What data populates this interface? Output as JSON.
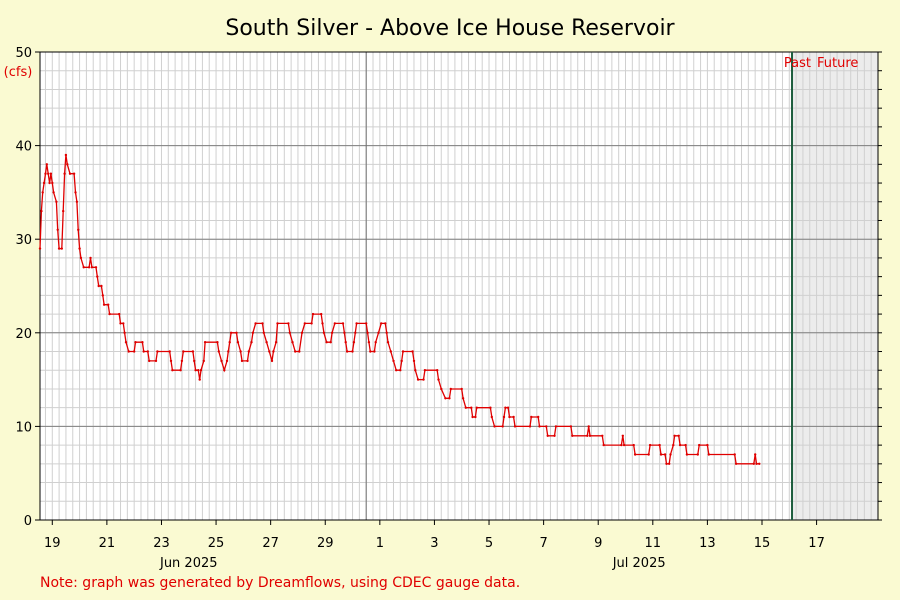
{
  "note": "Note: graph was generated by Dreamflows, using CDEC gauge data.",
  "colors": {
    "background": "#fafad2",
    "flow_line": "#e00000",
    "now_line": "#1e5e3e",
    "future_shade": "#ececec"
  },
  "chart_data": {
    "type": "line",
    "title": "South Silver - Above Ice House Reservoir",
    "ylabel": "(cfs)",
    "xlabel": "",
    "ylim": [
      0,
      50
    ],
    "y_ticks": [
      0,
      10,
      20,
      30,
      40,
      50
    ],
    "grid": true,
    "x_units": "day index (0 = Jun 18, 2025)",
    "xlim": [
      18.55,
      49.25
    ],
    "x_ticks": [
      {
        "x": 19,
        "label": "19"
      },
      {
        "x": 21,
        "label": "21"
      },
      {
        "x": 23,
        "label": "23"
      },
      {
        "x": 25,
        "label": "25"
      },
      {
        "x": 27,
        "label": "27"
      },
      {
        "x": 29,
        "label": "29"
      },
      {
        "x": 31,
        "label": "1"
      },
      {
        "x": 33,
        "label": "3"
      },
      {
        "x": 35,
        "label": "5"
      },
      {
        "x": 37,
        "label": "7"
      },
      {
        "x": 39,
        "label": "9"
      },
      {
        "x": 41,
        "label": "11"
      },
      {
        "x": 43,
        "label": "13"
      },
      {
        "x": 45,
        "label": "15"
      },
      {
        "x": 47,
        "label": "17"
      }
    ],
    "month_labels": [
      {
        "x": 24,
        "label": "Jun 2025"
      },
      {
        "x": 40.5,
        "label": "Jul 2025"
      }
    ],
    "month_divider_x": 30.5,
    "now_x": 46.1,
    "past_label": "Past",
    "future_label": "Future",
    "series": [
      {
        "values": [
          [
            18.55,
            29
          ],
          [
            18.6,
            33
          ],
          [
            18.65,
            35
          ],
          [
            18.7,
            36
          ],
          [
            18.75,
            37
          ],
          [
            18.8,
            38
          ],
          [
            18.85,
            37
          ],
          [
            18.9,
            36
          ],
          [
            18.95,
            37
          ],
          [
            19.0,
            36
          ],
          [
            19.05,
            35
          ],
          [
            19.15,
            34
          ],
          [
            19.2,
            31
          ],
          [
            19.25,
            29
          ],
          [
            19.35,
            29
          ],
          [
            19.4,
            33
          ],
          [
            19.45,
            37
          ],
          [
            19.5,
            39
          ],
          [
            19.55,
            38
          ],
          [
            19.65,
            37
          ],
          [
            19.8,
            37
          ],
          [
            19.85,
            35
          ],
          [
            19.9,
            34
          ],
          [
            19.95,
            31
          ],
          [
            20.0,
            29
          ],
          [
            20.05,
            28
          ],
          [
            20.15,
            27
          ],
          [
            20.35,
            27
          ],
          [
            20.4,
            28
          ],
          [
            20.45,
            27
          ],
          [
            20.6,
            27
          ],
          [
            20.65,
            26
          ],
          [
            20.7,
            25
          ],
          [
            20.8,
            25
          ],
          [
            20.85,
            24
          ],
          [
            20.9,
            23
          ],
          [
            21.05,
            23
          ],
          [
            21.1,
            22
          ],
          [
            21.45,
            22
          ],
          [
            21.5,
            21
          ],
          [
            21.6,
            21
          ],
          [
            21.65,
            20
          ],
          [
            21.7,
            19
          ],
          [
            21.8,
            18
          ],
          [
            22.0,
            18
          ],
          [
            22.05,
            19
          ],
          [
            22.3,
            19
          ],
          [
            22.35,
            18
          ],
          [
            22.5,
            18
          ],
          [
            22.55,
            17
          ],
          [
            22.8,
            17
          ],
          [
            22.85,
            18
          ],
          [
            23.3,
            18
          ],
          [
            23.35,
            17
          ],
          [
            23.4,
            16
          ],
          [
            23.7,
            16
          ],
          [
            23.75,
            17
          ],
          [
            23.8,
            18
          ],
          [
            24.15,
            18
          ],
          [
            24.2,
            17
          ],
          [
            24.25,
            16
          ],
          [
            24.35,
            16
          ],
          [
            24.4,
            15
          ],
          [
            24.45,
            16
          ],
          [
            24.55,
            17
          ],
          [
            24.6,
            19
          ],
          [
            25.05,
            19
          ],
          [
            25.1,
            18
          ],
          [
            25.2,
            17
          ],
          [
            25.3,
            16
          ],
          [
            25.4,
            17
          ],
          [
            25.45,
            18
          ],
          [
            25.5,
            19
          ],
          [
            25.55,
            20
          ],
          [
            25.75,
            20
          ],
          [
            25.8,
            19
          ],
          [
            25.9,
            18
          ],
          [
            25.95,
            17
          ],
          [
            26.15,
            17
          ],
          [
            26.2,
            18
          ],
          [
            26.3,
            19
          ],
          [
            26.35,
            20
          ],
          [
            26.45,
            21
          ],
          [
            26.7,
            21
          ],
          [
            26.75,
            20
          ],
          [
            26.85,
            19
          ],
          [
            26.95,
            18
          ],
          [
            27.05,
            17
          ],
          [
            27.1,
            18
          ],
          [
            27.2,
            19
          ],
          [
            27.25,
            21
          ],
          [
            27.65,
            21
          ],
          [
            27.7,
            20
          ],
          [
            27.8,
            19
          ],
          [
            27.9,
            18
          ],
          [
            28.05,
            18
          ],
          [
            28.15,
            20
          ],
          [
            28.25,
            21
          ],
          [
            28.5,
            21
          ],
          [
            28.55,
            22
          ],
          [
            28.85,
            22
          ],
          [
            28.9,
            21
          ],
          [
            28.95,
            20
          ],
          [
            29.05,
            19
          ],
          [
            29.2,
            19
          ],
          [
            29.25,
            20
          ],
          [
            29.35,
            21
          ],
          [
            29.65,
            21
          ],
          [
            29.7,
            20
          ],
          [
            29.75,
            19
          ],
          [
            29.8,
            18
          ],
          [
            30.0,
            18
          ],
          [
            30.05,
            19
          ],
          [
            30.1,
            20
          ],
          [
            30.15,
            21
          ],
          [
            30.5,
            21
          ],
          [
            30.55,
            20
          ],
          [
            30.6,
            19
          ],
          [
            30.65,
            18
          ],
          [
            30.8,
            18
          ],
          [
            30.85,
            19
          ],
          [
            30.95,
            20
          ],
          [
            31.05,
            21
          ],
          [
            31.2,
            21
          ],
          [
            31.25,
            20
          ],
          [
            31.3,
            19
          ],
          [
            31.4,
            18
          ],
          [
            31.5,
            17
          ],
          [
            31.6,
            16
          ],
          [
            31.75,
            16
          ],
          [
            31.8,
            17
          ],
          [
            31.85,
            18
          ],
          [
            32.2,
            18
          ],
          [
            32.25,
            17
          ],
          [
            32.3,
            16
          ],
          [
            32.4,
            15
          ],
          [
            32.6,
            15
          ],
          [
            32.65,
            16
          ],
          [
            33.1,
            16
          ],
          [
            33.15,
            15
          ],
          [
            33.25,
            14
          ],
          [
            33.4,
            13
          ],
          [
            33.55,
            13
          ],
          [
            33.6,
            14
          ],
          [
            34.0,
            14
          ],
          [
            34.05,
            13
          ],
          [
            34.15,
            12
          ],
          [
            34.35,
            12
          ],
          [
            34.4,
            11
          ],
          [
            34.5,
            11
          ],
          [
            34.55,
            12
          ],
          [
            35.05,
            12
          ],
          [
            35.1,
            11
          ],
          [
            35.2,
            10
          ],
          [
            35.5,
            10
          ],
          [
            35.55,
            11
          ],
          [
            35.6,
            12
          ],
          [
            35.7,
            12
          ],
          [
            35.75,
            11
          ],
          [
            35.9,
            11
          ],
          [
            35.95,
            10
          ],
          [
            36.5,
            10
          ],
          [
            36.55,
            11
          ],
          [
            36.8,
            11
          ],
          [
            36.85,
            10
          ],
          [
            37.1,
            10
          ],
          [
            37.15,
            9
          ],
          [
            37.4,
            9
          ],
          [
            37.45,
            10
          ],
          [
            38.0,
            10
          ],
          [
            38.05,
            9
          ],
          [
            38.6,
            9
          ],
          [
            38.65,
            10
          ],
          [
            38.7,
            9
          ],
          [
            39.15,
            9
          ],
          [
            39.2,
            8
          ],
          [
            39.85,
            8
          ],
          [
            39.9,
            9
          ],
          [
            39.95,
            8
          ],
          [
            40.3,
            8
          ],
          [
            40.35,
            7
          ],
          [
            40.85,
            7
          ],
          [
            40.9,
            8
          ],
          [
            41.25,
            8
          ],
          [
            41.3,
            7
          ],
          [
            41.45,
            7
          ],
          [
            41.5,
            6
          ],
          [
            41.6,
            6
          ],
          [
            41.65,
            7
          ],
          [
            41.75,
            8
          ],
          [
            41.8,
            9
          ],
          [
            41.95,
            9
          ],
          [
            42.0,
            8
          ],
          [
            42.2,
            8
          ],
          [
            42.25,
            7
          ],
          [
            42.65,
            7
          ],
          [
            42.7,
            8
          ],
          [
            43.0,
            8
          ],
          [
            43.05,
            7
          ],
          [
            44.0,
            7
          ],
          [
            44.05,
            6
          ],
          [
            44.7,
            6
          ],
          [
            44.75,
            7
          ],
          [
            44.8,
            6
          ],
          [
            44.9,
            6
          ]
        ]
      }
    ]
  }
}
